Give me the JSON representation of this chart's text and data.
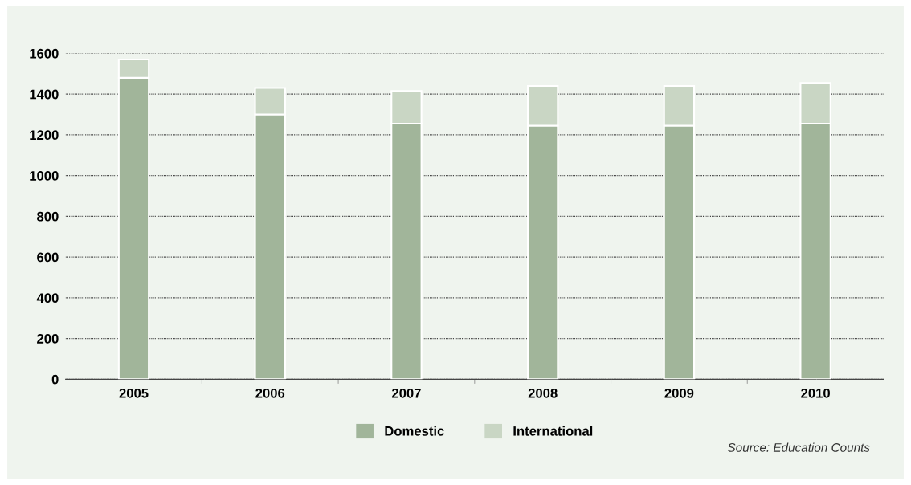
{
  "chart_data": {
    "type": "bar",
    "stacked": true,
    "categories": [
      "2005",
      "2006",
      "2007",
      "2008",
      "2009",
      "2010"
    ],
    "series": [
      {
        "name": "Domestic",
        "color": "#a1b59a",
        "values": [
          1480,
          1300,
          1255,
          1245,
          1245,
          1255
        ]
      },
      {
        "name": "International",
        "color": "#c9d6c4",
        "values": [
          90,
          130,
          160,
          195,
          195,
          200
        ]
      }
    ],
    "ylim": [
      0,
      1600
    ],
    "yticks": [
      0,
      200,
      400,
      600,
      800,
      1000,
      1200,
      1400,
      1600
    ],
    "grid": "y",
    "legend": "bottom",
    "annotations": [
      "Source: Education Counts"
    ]
  }
}
